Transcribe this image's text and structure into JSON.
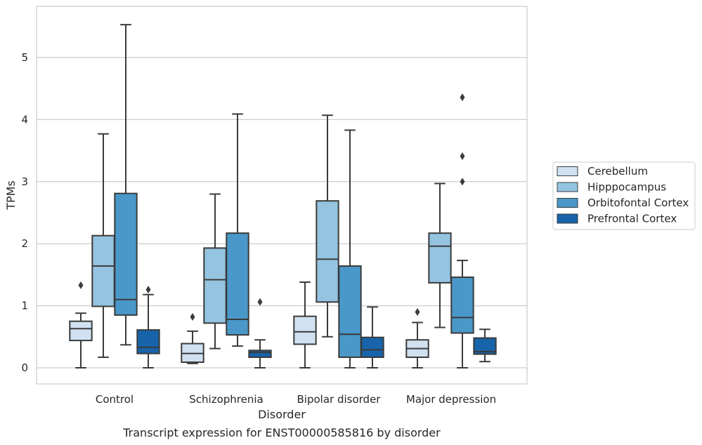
{
  "caption": "Transcript expression for ENST00000585816 by disorder",
  "chart_data": {
    "type": "box",
    "title": "",
    "xlabel": "Disorder",
    "ylabel": "TPMs",
    "ylim": [
      -0.27,
      5.85
    ],
    "yticks": [
      0,
      1,
      2,
      3,
      4,
      5
    ],
    "grid": true,
    "legend_position": "right",
    "categories": [
      "Control",
      "Schizophrenia",
      "Bipolar disorder",
      "Major depression"
    ],
    "series": [
      {
        "name": "Cerebellum",
        "color": "#d0e1f2",
        "boxes": [
          {
            "whislo": 0.0,
            "q1": 0.44,
            "med": 0.63,
            "q3": 0.75,
            "whishi": 0.88,
            "fliers": [
              1.33
            ]
          },
          {
            "whislo": 0.07,
            "q1": 0.09,
            "med": 0.23,
            "q3": 0.39,
            "whishi": 0.59,
            "fliers": [
              0.82
            ]
          },
          {
            "whislo": 0.0,
            "q1": 0.38,
            "med": 0.58,
            "q3": 0.83,
            "whishi": 1.38,
            "fliers": []
          },
          {
            "whislo": 0.0,
            "q1": 0.17,
            "med": 0.31,
            "q3": 0.45,
            "whishi": 0.73,
            "fliers": [
              0.9
            ]
          }
        ]
      },
      {
        "name": "Hipppocampus",
        "color": "#94c4df",
        "boxes": [
          {
            "whislo": 0.17,
            "q1": 0.99,
            "med": 1.64,
            "q3": 2.13,
            "whishi": 3.77,
            "fliers": []
          },
          {
            "whislo": 0.31,
            "q1": 0.72,
            "med": 1.42,
            "q3": 1.93,
            "whishi": 2.8,
            "fliers": []
          },
          {
            "whislo": 0.5,
            "q1": 1.06,
            "med": 1.75,
            "q3": 2.69,
            "whishi": 4.07,
            "fliers": []
          },
          {
            "whislo": 0.65,
            "q1": 1.37,
            "med": 1.96,
            "q3": 2.17,
            "whishi": 2.97,
            "fliers": []
          }
        ]
      },
      {
        "name": "Orbitofontal Cortex",
        "color": "#4a98c9",
        "boxes": [
          {
            "whislo": 0.37,
            "q1": 0.85,
            "med": 1.1,
            "q3": 2.81,
            "whishi": 5.53,
            "fliers": []
          },
          {
            "whislo": 0.35,
            "q1": 0.53,
            "med": 0.78,
            "q3": 2.17,
            "whishi": 4.09,
            "fliers": []
          },
          {
            "whislo": 0.0,
            "q1": 0.17,
            "med": 0.54,
            "q3": 1.64,
            "whishi": 3.83,
            "fliers": []
          },
          {
            "whislo": 0.0,
            "q1": 0.56,
            "med": 0.81,
            "q3": 1.46,
            "whishi": 1.73,
            "fliers": [
              3.0,
              3.41,
              4.36
            ]
          }
        ]
      },
      {
        "name": "Prefrontal Cortex",
        "color": "#1764ab",
        "boxes": [
          {
            "whislo": 0.0,
            "q1": 0.23,
            "med": 0.33,
            "q3": 0.61,
            "whishi": 1.18,
            "fliers": [
              1.26
            ]
          },
          {
            "whislo": 0.0,
            "q1": 0.17,
            "med": 0.25,
            "q3": 0.28,
            "whishi": 0.45,
            "fliers": [
              1.06
            ]
          },
          {
            "whislo": 0.0,
            "q1": 0.17,
            "med": 0.29,
            "q3": 0.49,
            "whishi": 0.98,
            "fliers": []
          },
          {
            "whislo": 0.1,
            "q1": 0.22,
            "med": 0.26,
            "q3": 0.48,
            "whishi": 0.62,
            "fliers": []
          }
        ]
      }
    ]
  }
}
